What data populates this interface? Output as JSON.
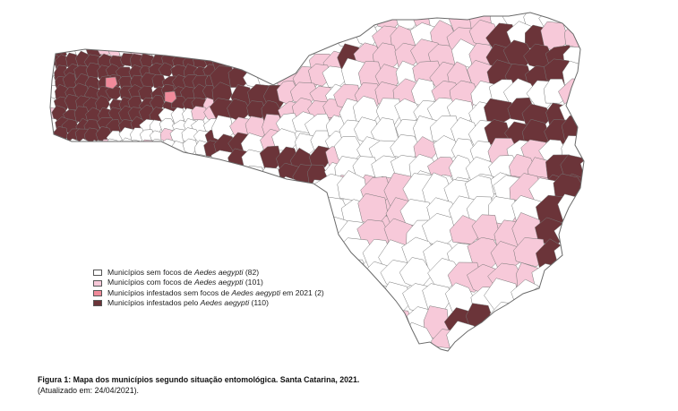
{
  "colors": {
    "sem_focos": "#ffffff",
    "com_focos": "#f7c9d9",
    "infestados_sem_focos": "#f08a9a",
    "infestados": "#6b3439",
    "border": "#777777"
  },
  "legend": [
    {
      "prefix": "Municípios sem focos de ",
      "species": "Aedes aegypti",
      "suffix": " (82)",
      "color_key": "sem_focos"
    },
    {
      "prefix": "Municípios com focos de ",
      "species": "Aedes aegypti",
      "suffix": " (101)",
      "color_key": "com_focos"
    },
    {
      "prefix": "Municípios infestados sem focos de ",
      "species": "Aedes aegypti",
      "suffix": " em 2021 (2)",
      "color_key": "infestados_sem_focos"
    },
    {
      "prefix": "Municípios infestados pelo ",
      "species": "Aedes aegypti",
      "suffix": " (110)",
      "color_key": "infestados"
    }
  ],
  "caption": {
    "title": "Figura 1: Mapa dos municípios segundo situação entomológica. Santa Catarina, 2021.",
    "subtitle": "(Atualizado em: 24/04/2021)."
  }
}
